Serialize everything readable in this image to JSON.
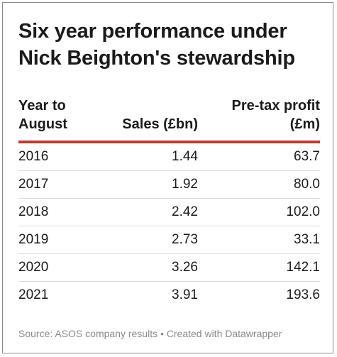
{
  "title": "Six year performance under Nick Beighton's stewardship",
  "source": "Source: ASOS company results • Created with Datawrapper",
  "chart_data": {
    "type": "table",
    "columns": [
      "Year to August",
      "Sales (£bn)",
      "Pre-tax profit (£m)"
    ],
    "rows": [
      [
        "2016",
        "1.44",
        "63.7"
      ],
      [
        "2017",
        "1.92",
        "80.0"
      ],
      [
        "2018",
        "2.42",
        "102.0"
      ],
      [
        "2019",
        "2.73",
        "33.1"
      ],
      [
        "2020",
        "3.26",
        "142.1"
      ],
      [
        "2021",
        "3.91",
        "193.6"
      ]
    ],
    "colors": {
      "header_rule": "#c0392b",
      "row_divider": "#dcdcdc",
      "text": "#1b1b1b",
      "source_text": "#8a8a8a"
    }
  }
}
